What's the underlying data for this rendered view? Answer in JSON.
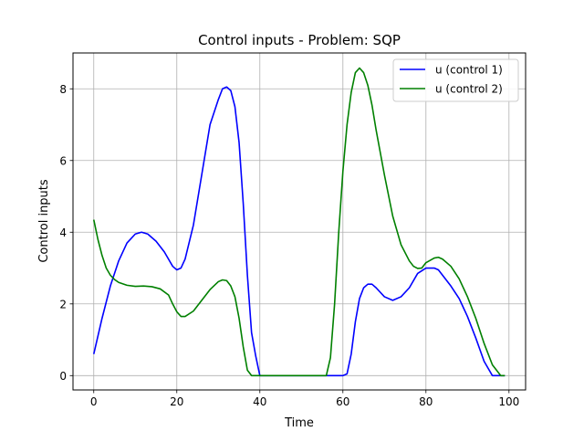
{
  "chart_data": {
    "type": "line",
    "title": "Control inputs - Problem: SQP",
    "xlabel": "Time",
    "ylabel": "Control inputs",
    "xlim": [
      -5,
      104
    ],
    "ylim": [
      -0.4,
      9.0
    ],
    "xticks": [
      0,
      20,
      40,
      60,
      80,
      100
    ],
    "xtick_labels": [
      "0",
      "20",
      "40",
      "60",
      "80",
      "100"
    ],
    "yticks": [
      0,
      2,
      4,
      6,
      8
    ],
    "ytick_labels": [
      "0",
      "2",
      "4",
      "6",
      "8"
    ],
    "grid": true,
    "legend_position": "top-right",
    "series": [
      {
        "name": "u (control 1)",
        "color": "#0000ff",
        "x": [
          0,
          2,
          4,
          6,
          8,
          10,
          11.5,
          13,
          15,
          17,
          19,
          20,
          21,
          22,
          24,
          26,
          28,
          30,
          31,
          32,
          33,
          34,
          35,
          36,
          37,
          38,
          39,
          40,
          41,
          45,
          50,
          55,
          60,
          61,
          62,
          63,
          64,
          65,
          66,
          67,
          68,
          70,
          72,
          74,
          76,
          78,
          80,
          82,
          83,
          84,
          86,
          88,
          90,
          92,
          94,
          96,
          98,
          99
        ],
        "y": [
          0.6,
          1.6,
          2.5,
          3.2,
          3.7,
          3.95,
          4.0,
          3.95,
          3.75,
          3.45,
          3.05,
          2.95,
          3.0,
          3.25,
          4.2,
          5.6,
          7.0,
          7.7,
          8.0,
          8.05,
          7.95,
          7.5,
          6.5,
          4.8,
          2.8,
          1.2,
          0.55,
          0.0,
          0.0,
          0.0,
          0.0,
          0.0,
          0.0,
          0.05,
          0.6,
          1.5,
          2.15,
          2.45,
          2.55,
          2.55,
          2.45,
          2.2,
          2.1,
          2.2,
          2.45,
          2.85,
          3.0,
          3.0,
          2.95,
          2.8,
          2.5,
          2.15,
          1.65,
          1.05,
          0.4,
          0.0,
          0.0,
          0.0
        ]
      },
      {
        "name": "u (control 2)",
        "color": "#008000",
        "x": [
          0,
          1,
          2,
          3,
          4,
          5,
          6,
          8,
          10,
          12,
          14,
          16,
          18,
          19,
          20,
          21,
          22,
          24,
          26,
          28,
          30,
          31,
          32,
          33,
          34,
          35,
          36,
          37,
          38,
          40,
          45,
          50,
          55,
          56,
          57,
          58,
          59,
          60,
          61,
          62,
          63,
          64,
          65,
          66,
          67,
          68,
          70,
          72,
          74,
          76,
          77,
          78,
          79,
          80,
          82,
          83,
          84,
          86,
          88,
          90,
          92,
          94,
          96,
          98,
          99
        ],
        "y": [
          4.35,
          3.8,
          3.35,
          3.0,
          2.8,
          2.68,
          2.6,
          2.52,
          2.49,
          2.5,
          2.48,
          2.42,
          2.25,
          2.0,
          1.78,
          1.65,
          1.65,
          1.8,
          2.1,
          2.4,
          2.62,
          2.67,
          2.65,
          2.5,
          2.2,
          1.6,
          0.8,
          0.15,
          0.0,
          0.0,
          0.0,
          0.0,
          0.0,
          0.0,
          0.5,
          2.0,
          4.0,
          5.7,
          7.0,
          7.9,
          8.45,
          8.58,
          8.45,
          8.1,
          7.55,
          6.85,
          5.6,
          4.45,
          3.65,
          3.2,
          3.05,
          2.99,
          3.0,
          3.15,
          3.28,
          3.3,
          3.25,
          3.05,
          2.7,
          2.2,
          1.6,
          0.9,
          0.3,
          0.0,
          0.0
        ]
      }
    ]
  }
}
